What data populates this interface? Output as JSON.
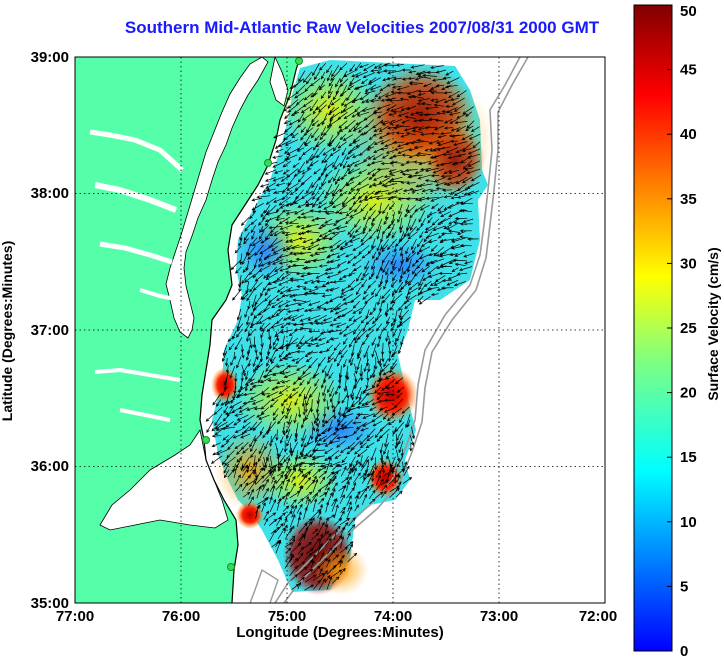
{
  "title": "Southern Mid-Atlantic Raw Velocities 2007/08/31 2000 GMT",
  "xlabel": "Longitude (Degrees:Minutes)",
  "ylabel": "Latitude (Degrees:Minutes)",
  "x_ticks": [
    "77:00",
    "76:00",
    "75:00",
    "74:00",
    "73:00",
    "72:00"
  ],
  "y_ticks": [
    "39:00",
    "38:00",
    "37:00",
    "36:00",
    "35:00"
  ],
  "lon_range": [
    -77,
    -72
  ],
  "lat_range": [
    35,
    39
  ],
  "colorbar": {
    "label": "Surface Velocity (cm/s)",
    "ticks": [
      "50",
      "45",
      "40",
      "35",
      "30",
      "25",
      "20",
      "15",
      "10",
      "5",
      "0"
    ],
    "range": [
      0,
      50
    ],
    "colormap": [
      "#0000ff",
      "#0080ff",
      "#00ffff",
      "#80ff80",
      "#ffff00",
      "#ff8000",
      "#ff0000",
      "#800000"
    ]
  },
  "land_color": "#55ffaa",
  "coast_color": "#000000",
  "bathymetry_color": "#9a9a9a",
  "station_marker_color": "#33dd55"
}
